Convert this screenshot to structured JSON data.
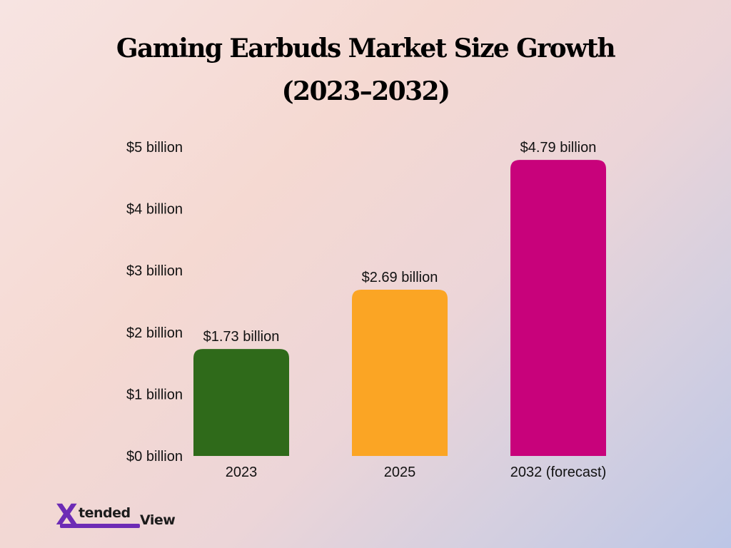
{
  "title_line1": "Gaming Earbuds Market Size Growth",
  "title_line2": "(2023–2032)",
  "logo": {
    "mark": "X",
    "text_part1": "tended",
    "text_part2": "View"
  },
  "colors": {
    "bar_2023": "#2f6a1a",
    "bar_2025": "#fba524",
    "bar_2032": "#c8027b"
  },
  "chart_data": {
    "type": "bar",
    "categories": [
      "2023",
      "2025",
      "2032 (forecast)"
    ],
    "values": [
      1.73,
      2.69,
      4.79
    ],
    "value_labels": [
      "$1.73 billion",
      "$2.69 billion",
      "$4.79 billion"
    ],
    "bar_colors": [
      "#2f6a1a",
      "#fba524",
      "#c8027b"
    ],
    "y_ticks": [
      0,
      1,
      2,
      3,
      4,
      5
    ],
    "y_tick_labels": [
      "$0 billion",
      "$1 billion",
      "$2 billion",
      "$3 billion",
      "$4 billion",
      "$5 billion"
    ],
    "ylim": [
      0,
      5
    ],
    "title": "Gaming Earbuds Market Size Growth (2023–2032)",
    "xlabel": "",
    "ylabel": "",
    "grid": false,
    "legend": "none"
  }
}
